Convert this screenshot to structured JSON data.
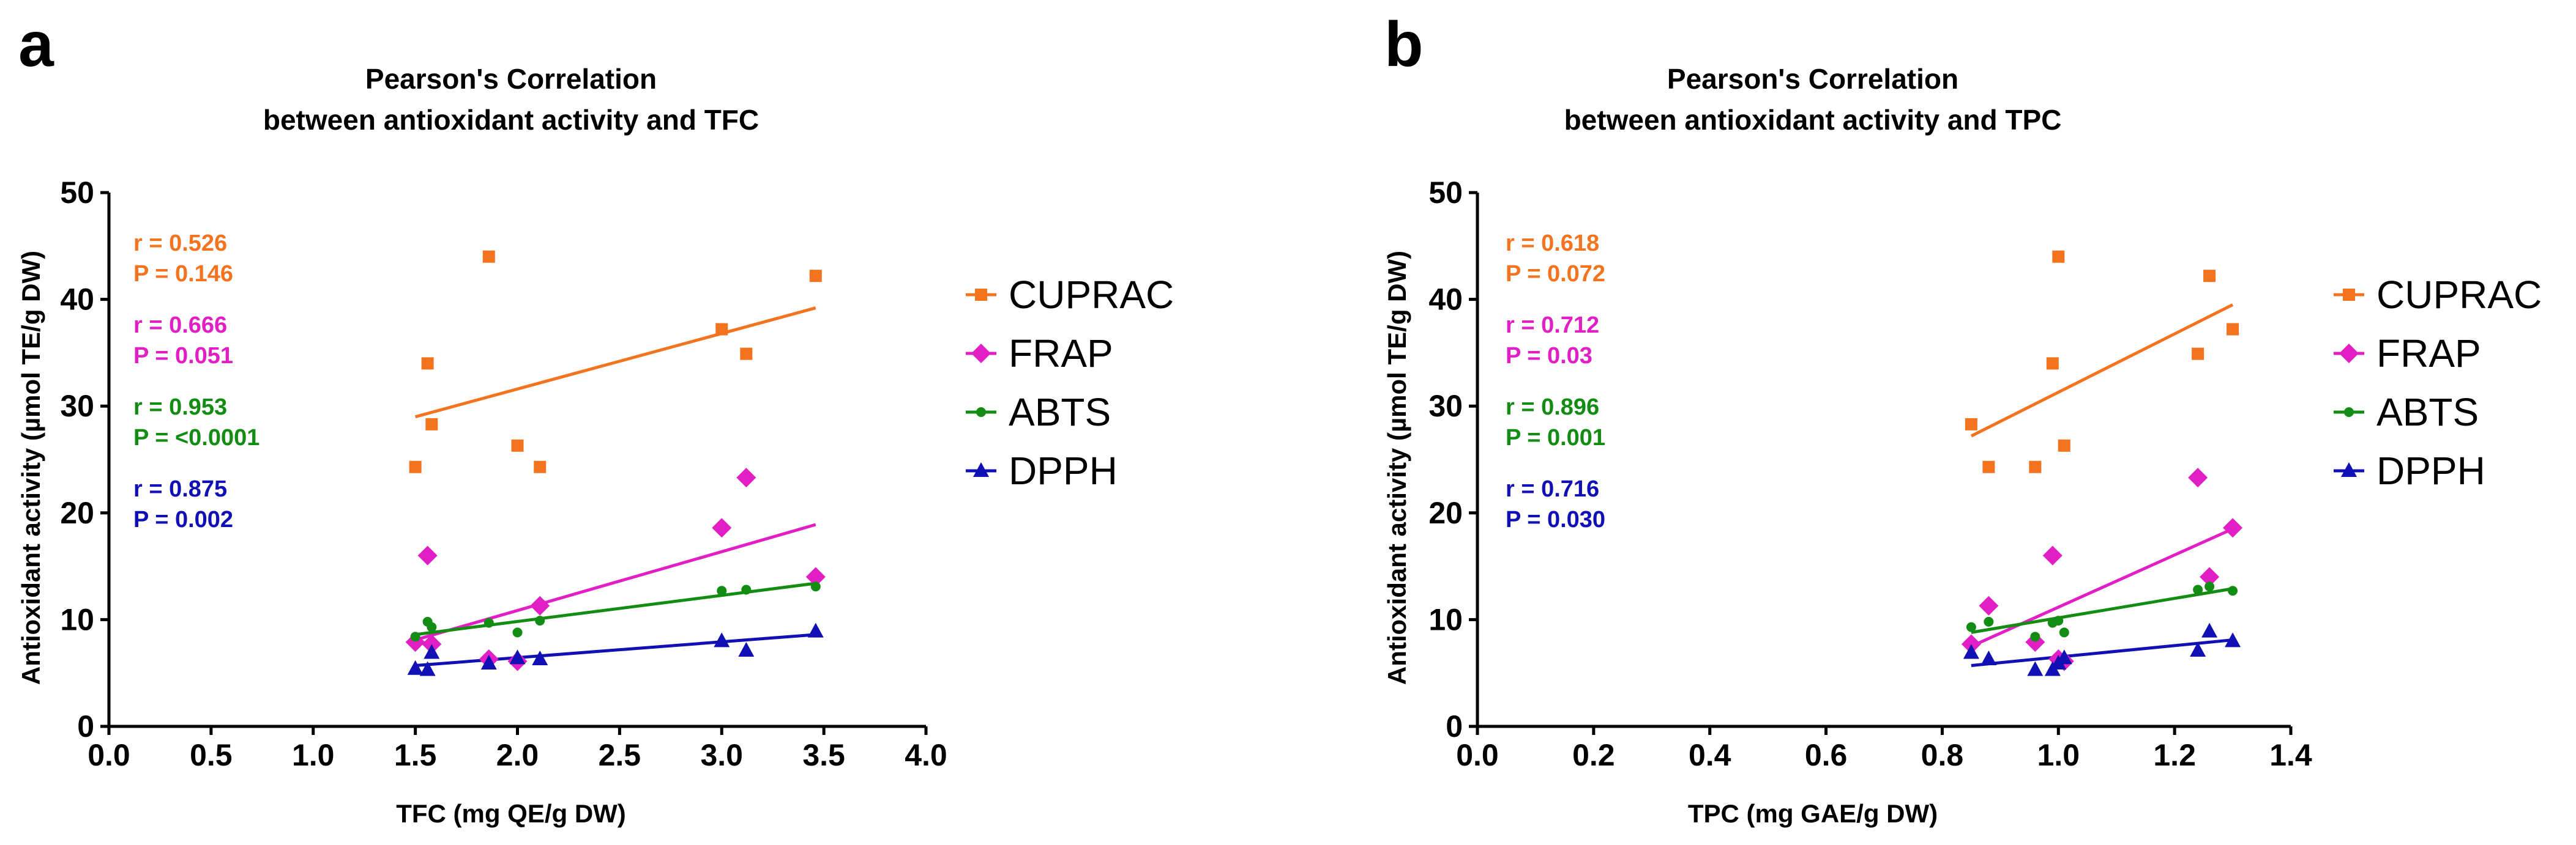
{
  "chart_data": [
    {
      "type": "scatter",
      "panel_label": "a",
      "title": [
        "Pearson's Correlation",
        "between antioxidant activity and TFC"
      ],
      "xlabel": "TFC (mg QE/g DW)",
      "ylabel": "Antioxidant activity (µmol TE/g DW)",
      "xlim": [
        0,
        4
      ],
      "ylim": [
        0,
        50
      ],
      "x_ticks": [
        "0.0",
        "0.5",
        "1.0",
        "1.5",
        "2.0",
        "2.5",
        "3.0",
        "3.5",
        "4.0"
      ],
      "y_ticks": [
        "0",
        "10",
        "20",
        "30",
        "40",
        "50"
      ],
      "series": [
        {
          "name": "CUPRAC",
          "color": "#f4731f",
          "marker": "square",
          "x": [
            1.5,
            1.56,
            1.58,
            1.86,
            2.0,
            2.11,
            3.0,
            3.12,
            3.46
          ],
          "y": [
            24.3,
            34.0,
            28.3,
            44.0,
            26.3,
            24.3,
            37.2,
            34.9,
            42.2
          ],
          "fit": [
            [
              1.5,
              29.0
            ],
            [
              3.46,
              39.2
            ]
          ],
          "r": "r = 0.526",
          "p": "P = 0.146"
        },
        {
          "name": "FRAP",
          "color": "#e11fc4",
          "marker": "diamond",
          "x": [
            1.5,
            1.56,
            1.58,
            1.86,
            2.0,
            2.11,
            3.0,
            3.12,
            3.46
          ],
          "y": [
            7.9,
            16.0,
            7.7,
            6.3,
            6.1,
            11.3,
            18.6,
            23.3,
            14.0
          ],
          "fit": [
            [
              1.5,
              8.1
            ],
            [
              3.46,
              18.9
            ]
          ],
          "r": "r = 0.666",
          "p": "P = 0.051"
        },
        {
          "name": "ABTS",
          "color": "#128c12",
          "marker": "circle",
          "x": [
            1.5,
            1.56,
            1.58,
            1.86,
            2.0,
            2.11,
            3.0,
            3.12,
            3.46
          ],
          "y": [
            8.4,
            9.8,
            9.3,
            9.7,
            8.8,
            9.9,
            12.7,
            12.8,
            13.1
          ],
          "fit": [
            [
              1.5,
              8.6
            ],
            [
              3.46,
              13.4
            ]
          ],
          "r": "r = 0.953",
          "p": "P = <0.0001"
        },
        {
          "name": "DPPH",
          "color": "#1010b4",
          "marker": "triangle",
          "x": [
            1.5,
            1.56,
            1.58,
            1.86,
            2.0,
            2.11,
            3.0,
            3.12,
            3.46
          ],
          "y": [
            5.4,
            5.3,
            6.9,
            5.9,
            6.4,
            6.3,
            8.0,
            7.1,
            8.9
          ],
          "fit": [
            [
              1.5,
              5.7
            ],
            [
              3.46,
              8.6
            ]
          ],
          "r": "r = 0.875",
          "p": "P = 0.002"
        }
      ],
      "legend_position": "right"
    },
    {
      "type": "scatter",
      "panel_label": "b",
      "title": [
        "Pearson's Correlation",
        "between antioxidant activity and TPC"
      ],
      "xlabel": "TPC (mg GAE/g DW)",
      "ylabel": "Antioxidant activity (µmol TE/g DW)",
      "xlim": [
        0,
        1.4
      ],
      "ylim": [
        0,
        50
      ],
      "x_ticks": [
        "0.0",
        "0.2",
        "0.4",
        "0.6",
        "0.8",
        "1.0",
        "1.2",
        "1.4"
      ],
      "y_ticks": [
        "0",
        "10",
        "20",
        "30",
        "40",
        "50"
      ],
      "series": [
        {
          "name": "CUPRAC",
          "color": "#f4731f",
          "marker": "square",
          "x": [
            0.85,
            0.88,
            0.96,
            0.99,
            1.0,
            1.01,
            1.24,
            1.26,
            1.3
          ],
          "y": [
            28.3,
            24.3,
            24.3,
            34.0,
            44.0,
            26.3,
            34.9,
            42.2,
            37.2
          ],
          "fit": [
            [
              0.85,
              27.2
            ],
            [
              1.3,
              39.5
            ]
          ],
          "r": "r = 0.618",
          "p": "P = 0.072"
        },
        {
          "name": "FRAP",
          "color": "#e11fc4",
          "marker": "diamond",
          "x": [
            0.85,
            0.88,
            0.96,
            0.99,
            1.0,
            1.01,
            1.24,
            1.26,
            1.3
          ],
          "y": [
            7.7,
            11.3,
            7.9,
            16.0,
            6.3,
            6.1,
            23.3,
            14.0,
            18.6
          ],
          "fit": [
            [
              0.85,
              7.5
            ],
            [
              1.3,
              18.5
            ]
          ],
          "r": "r = 0.712",
          "p": "P = 0.03"
        },
        {
          "name": "ABTS",
          "color": "#128c12",
          "marker": "circle",
          "x": [
            0.85,
            0.88,
            0.96,
            0.99,
            1.0,
            1.01,
            1.24,
            1.26,
            1.3
          ],
          "y": [
            9.3,
            9.8,
            8.4,
            9.7,
            9.9,
            8.8,
            12.8,
            13.1,
            12.7
          ],
          "fit": [
            [
              0.85,
              8.8
            ],
            [
              1.3,
              12.9
            ]
          ],
          "r": "r = 0.896",
          "p": "P = 0.001"
        },
        {
          "name": "DPPH",
          "color": "#1010b4",
          "marker": "triangle",
          "x": [
            0.85,
            0.88,
            0.96,
            0.99,
            1.0,
            1.01,
            1.24,
            1.26,
            1.3
          ],
          "y": [
            6.9,
            6.3,
            5.3,
            5.3,
            5.9,
            6.4,
            7.1,
            8.9,
            8.0
          ],
          "fit": [
            [
              0.85,
              5.7
            ],
            [
              1.3,
              8.1
            ]
          ],
          "r": "r = 0.716",
          "p": "P = 0.030"
        }
      ],
      "legend_position": "right"
    }
  ]
}
